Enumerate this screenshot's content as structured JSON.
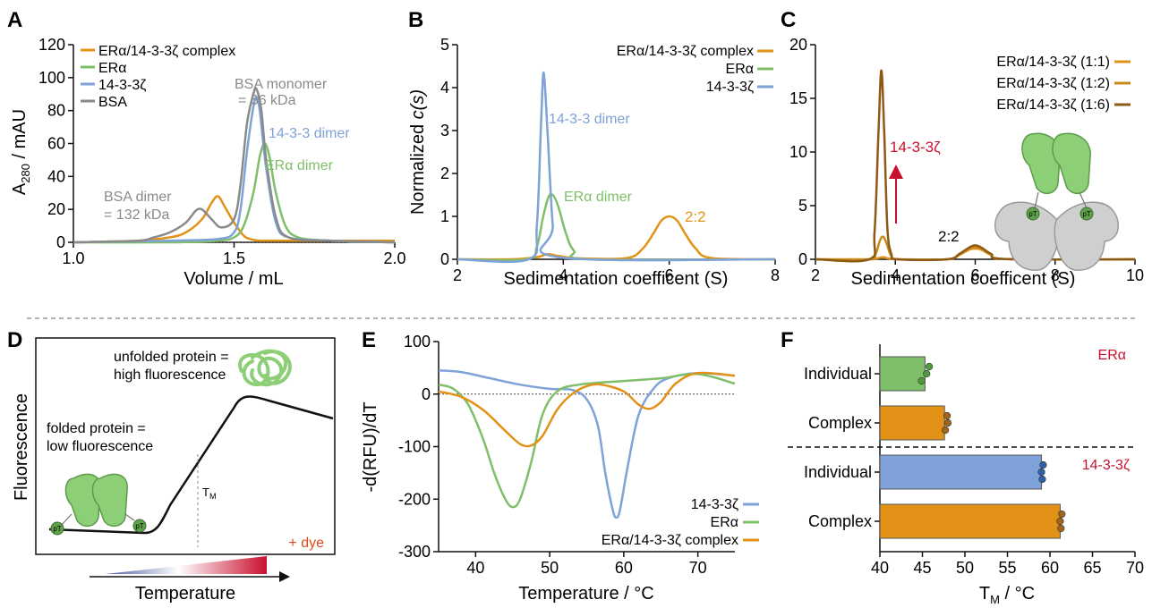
{
  "colors": {
    "orange": "#e39218",
    "green": "#7fbf6a",
    "blue": "#7fa2d8",
    "gray": "#8a8a8a",
    "darkorange": "#c88a1c",
    "brown": "#8c5a14",
    "red": "#c8102e",
    "axis": "#111111"
  },
  "panels": {
    "A": {
      "letter": "A",
      "ylabel_main": "A",
      "ylabel_sub": "280",
      "ylabel_rest": " / mAU",
      "xlabel": "Volume / mL",
      "yticks": [
        "0",
        "20",
        "40",
        "60",
        "80",
        "100",
        "120"
      ],
      "xticks": [
        "1.0",
        "1.5",
        "2.0"
      ],
      "annotations": {
        "bsa_mono_1": "BSA monomer",
        "bsa_mono_2": "= 66 kDa",
        "dimer1433": "14-3-3 dimer",
        "eradimer": "ERα dimer",
        "bsadimer_1": "BSA dimer",
        "bsadimer_2": "= 132 kDa"
      },
      "legend": [
        "ERα/14-3-3ζ complex",
        "ERα",
        "14-3-3ζ",
        "BSA"
      ]
    },
    "B": {
      "letter": "B",
      "ylabel_a": "Normalized ",
      "ylabel_b": "c(s)",
      "xlabel": "Sedimentation coefficent (S)",
      "yticks": [
        "0",
        "1",
        "2",
        "3",
        "4",
        "5"
      ],
      "xticks": [
        "2",
        "4",
        "6",
        "8"
      ],
      "annotations": {
        "dimer1433": "14-3-3 dimer",
        "eradimer": "ERα dimer",
        "r22": "2:2"
      },
      "legend": [
        "ERα/14-3-3ζ complex",
        "ERα",
        "14-3-3ζ"
      ]
    },
    "C": {
      "letter": "C",
      "xlabel": "Sedimentation coefficent (S)",
      "yticks": [
        "0",
        "5",
        "10",
        "15",
        "20"
      ],
      "xticks": [
        "2",
        "4",
        "6",
        "8",
        "10"
      ],
      "annotations": {
        "z1433": "14-3-3ζ",
        "r22": "2:2",
        "pt1": "pT",
        "pt2": "pT"
      },
      "legend": [
        "ERα/14-3-3ζ (1:1)",
        "ERα/14-3-3ζ (1:2)",
        "ERα/14-3-3ζ (1:6)"
      ]
    },
    "D": {
      "letter": "D",
      "ylabel": "Fluorescence",
      "xlabel": "Temperature",
      "tm_main": "T",
      "tm_sub": "M",
      "unfolded_1": "unfolded protein =",
      "unfolded_2": "high fluorescence",
      "folded_1": "folded protein =",
      "folded_2": "low fluorescence",
      "dye": "+ dye",
      "pt1": "pT",
      "pt2": "pT"
    },
    "E": {
      "letter": "E",
      "ylabel": "-d(RFU)/dT",
      "xlabel": "Temperature / °C",
      "yticks": [
        "-300",
        "-200",
        "-100",
        "0",
        "100"
      ],
      "xticks": [
        "40",
        "50",
        "60",
        "70"
      ],
      "legend": [
        "14-3-3ζ",
        "ERα",
        "ERα/14-3-3ζ complex"
      ]
    },
    "F": {
      "letter": "F",
      "xlabel_main": "T",
      "xlabel_sub": "M",
      "xlabel_rest": " / °C",
      "xticks": [
        "40",
        "45",
        "50",
        "55",
        "60",
        "65",
        "70"
      ],
      "categories": [
        "Individual",
        "Complex",
        "Individual",
        "Complex"
      ],
      "group_labels": [
        "ERα",
        "14-3-3ζ"
      ]
    }
  },
  "chart_data": [
    {
      "panel": "A",
      "type": "line",
      "xlabel": "Volume / mL",
      "ylabel": "A280 / mAU",
      "xlim": [
        1.0,
        2.0
      ],
      "ylim": [
        0,
        120
      ],
      "series": [
        {
          "name": "ERα/14-3-3ζ complex",
          "color": "#e39218",
          "x": [
            1.0,
            1.2,
            1.3,
            1.35,
            1.4,
            1.43,
            1.45,
            1.47,
            1.5,
            1.53,
            1.55,
            1.58,
            1.6,
            1.65,
            1.8,
            2.0
          ],
          "y": [
            0,
            1,
            3,
            6,
            14,
            24,
            28,
            22,
            12,
            4,
            2,
            1,
            1,
            1,
            1,
            1
          ]
        },
        {
          "name": "ERα",
          "color": "#7fbf6a",
          "x": [
            1.0,
            1.3,
            1.45,
            1.5,
            1.53,
            1.56,
            1.58,
            1.595,
            1.61,
            1.63,
            1.66,
            1.7,
            1.8,
            2.0
          ],
          "y": [
            0,
            0,
            1,
            3,
            10,
            30,
            52,
            60,
            52,
            30,
            10,
            3,
            1,
            0
          ]
        },
        {
          "name": "14-3-3ζ",
          "color": "#7fa2d8",
          "x": [
            1.0,
            1.3,
            1.45,
            1.5,
            1.52,
            1.54,
            1.56,
            1.57,
            1.58,
            1.6,
            1.63,
            1.67,
            1.8,
            2.0
          ],
          "y": [
            0,
            1,
            2,
            6,
            20,
            55,
            82,
            88,
            80,
            45,
            12,
            3,
            1,
            0
          ]
        },
        {
          "name": "BSA",
          "color": "#8a8a8a",
          "x": [
            1.0,
            1.2,
            1.25,
            1.3,
            1.35,
            1.38,
            1.4,
            1.43,
            1.46,
            1.5,
            1.52,
            1.54,
            1.56,
            1.57,
            1.585,
            1.6,
            1.63,
            1.67,
            1.8,
            2.0
          ],
          "y": [
            0,
            1,
            3,
            6,
            12,
            19,
            20,
            14,
            9,
            14,
            35,
            72,
            90,
            93,
            80,
            50,
            15,
            3,
            1,
            0
          ]
        }
      ]
    },
    {
      "panel": "B",
      "type": "line",
      "xlabel": "Sedimentation coefficent (S)",
      "ylabel": "Normalized c(s)",
      "xlim": [
        2,
        8
      ],
      "ylim": [
        0,
        5
      ],
      "series": [
        {
          "name": "ERα/14-3-3ζ complex",
          "color": "#e39218",
          "x": [
            2,
            3,
            3.5,
            3.7,
            3.9,
            4.3,
            5.2,
            5.5,
            5.7,
            5.85,
            6.0,
            6.15,
            6.3,
            6.5,
            6.8,
            8
          ],
          "y": [
            0,
            0,
            0.05,
            0.12,
            0.08,
            0.02,
            0.03,
            0.25,
            0.6,
            0.9,
            1.0,
            0.9,
            0.6,
            0.25,
            0.03,
            0
          ]
        },
        {
          "name": "ERα",
          "color": "#7fbf6a",
          "x": [
            2,
            3.3,
            3.5,
            3.62,
            3.72,
            3.8,
            3.9,
            4.05,
            4.2,
            4.5,
            8
          ],
          "y": [
            0,
            0,
            0.3,
            1.0,
            1.45,
            1.5,
            1.25,
            0.6,
            0.2,
            0,
            0
          ]
        },
        {
          "name": "14-3-3ζ",
          "color": "#7fa2d8",
          "x": [
            2,
            3.35,
            3.5,
            3.58,
            3.63,
            3.7,
            3.8,
            3.9,
            8
          ],
          "y": [
            0,
            0,
            0.8,
            3.2,
            4.35,
            3.0,
            0.8,
            0.05,
            0
          ]
        }
      ]
    },
    {
      "panel": "C",
      "type": "line",
      "xlabel": "Sedimentation coefficent (S)",
      "xlim": [
        2,
        10
      ],
      "ylim": [
        0,
        20
      ],
      "series": [
        {
          "name": "ERα/14-3-3ζ (1:1)",
          "color": "#e39218",
          "x": [
            2,
            3.3,
            3.5,
            3.62,
            3.7,
            3.78,
            3.9,
            4.1,
            5.3,
            5.6,
            5.85,
            6.0,
            6.15,
            6.4,
            6.8,
            10
          ],
          "y": [
            0,
            0,
            0.05,
            0.15,
            0.2,
            0.12,
            0.04,
            0,
            0,
            0.4,
            0.9,
            1.0,
            0.9,
            0.4,
            0.02,
            0
          ]
        },
        {
          "name": "ERα/14-3-3ζ (1:2)",
          "color": "#c88a1c",
          "x": [
            2,
            3.35,
            3.5,
            3.62,
            3.7,
            3.78,
            3.9,
            4.1,
            5.3,
            5.6,
            5.85,
            6.0,
            6.15,
            6.4,
            6.8,
            10
          ],
          "y": [
            0,
            0,
            0.4,
            1.8,
            2.1,
            1.5,
            0.3,
            0,
            0,
            0.45,
            1.0,
            1.15,
            1.0,
            0.45,
            0.02,
            0
          ]
        },
        {
          "name": "ERα/14-3-3ζ (1:6)",
          "color": "#8c5a14",
          "x": [
            2,
            3.35,
            3.48,
            3.58,
            3.65,
            3.72,
            3.8,
            3.9,
            4.05,
            5.3,
            5.6,
            5.85,
            6.0,
            6.15,
            6.4,
            6.8,
            10
          ],
          "y": [
            0,
            0,
            2.5,
            12,
            17.6,
            12,
            3,
            0.5,
            0,
            0,
            0.5,
            1.1,
            1.3,
            1.1,
            0.5,
            0.02,
            0
          ]
        }
      ]
    },
    {
      "panel": "E",
      "type": "line",
      "xlabel": "Temperature / °C",
      "ylabel": "-d(RFU)/dT",
      "xlim": [
        35,
        75
      ],
      "ylim": [
        -300,
        100
      ],
      "series": [
        {
          "name": "14-3-3ζ",
          "color": "#7fa2d8",
          "x": [
            35,
            38,
            42,
            46,
            50,
            53,
            55,
            56.5,
            57.5,
            58.5,
            59,
            59.5,
            60.5,
            62,
            64,
            66,
            70,
            75
          ],
          "y": [
            45,
            42,
            30,
            18,
            10,
            8,
            -10,
            -60,
            -150,
            -220,
            -235,
            -220,
            -140,
            -40,
            10,
            30,
            40,
            35
          ]
        },
        {
          "name": "ERα",
          "color": "#7fbf6a",
          "x": [
            35,
            37,
            39,
            41,
            42.5,
            44,
            45,
            46,
            47.5,
            49,
            51,
            54,
            60,
            65,
            70,
            75
          ],
          "y": [
            18,
            10,
            -20,
            -85,
            -150,
            -200,
            -215,
            -200,
            -130,
            -40,
            5,
            18,
            25,
            30,
            38,
            20
          ]
        },
        {
          "name": "ERα/14-3-3ζ complex",
          "color": "#e39218",
          "x": [
            35,
            38,
            41,
            44,
            46,
            47.5,
            49,
            51,
            53,
            55,
            57,
            60,
            62,
            63.5,
            65,
            67,
            70,
            75
          ],
          "y": [
            5,
            -5,
            -30,
            -70,
            -95,
            -98,
            -80,
            -30,
            0,
            15,
            18,
            5,
            -20,
            -28,
            -15,
            20,
            40,
            35
          ]
        }
      ]
    },
    {
      "panel": "F",
      "type": "bar",
      "xlabel": "TM / °C",
      "xlim": [
        40,
        70
      ],
      "orientation": "horizontal",
      "categories": [
        "Individual",
        "Complex",
        "Individual",
        "Complex"
      ],
      "groups": [
        "ERα",
        "ERα",
        "14-3-3ζ",
        "14-3-3ζ"
      ],
      "values": [
        45.3,
        47.6,
        59.0,
        61.2
      ],
      "colors": [
        "#7fbf6a",
        "#e39218",
        "#7fa2d8",
        "#e39218"
      ],
      "points": [
        [
          45.8,
          45.5,
          44.9
        ],
        [
          47.9,
          48.0,
          47.7
        ],
        [
          59.2,
          59.0,
          59.1
        ],
        [
          61.4,
          61.2,
          61.3
        ]
      ]
    }
  ]
}
